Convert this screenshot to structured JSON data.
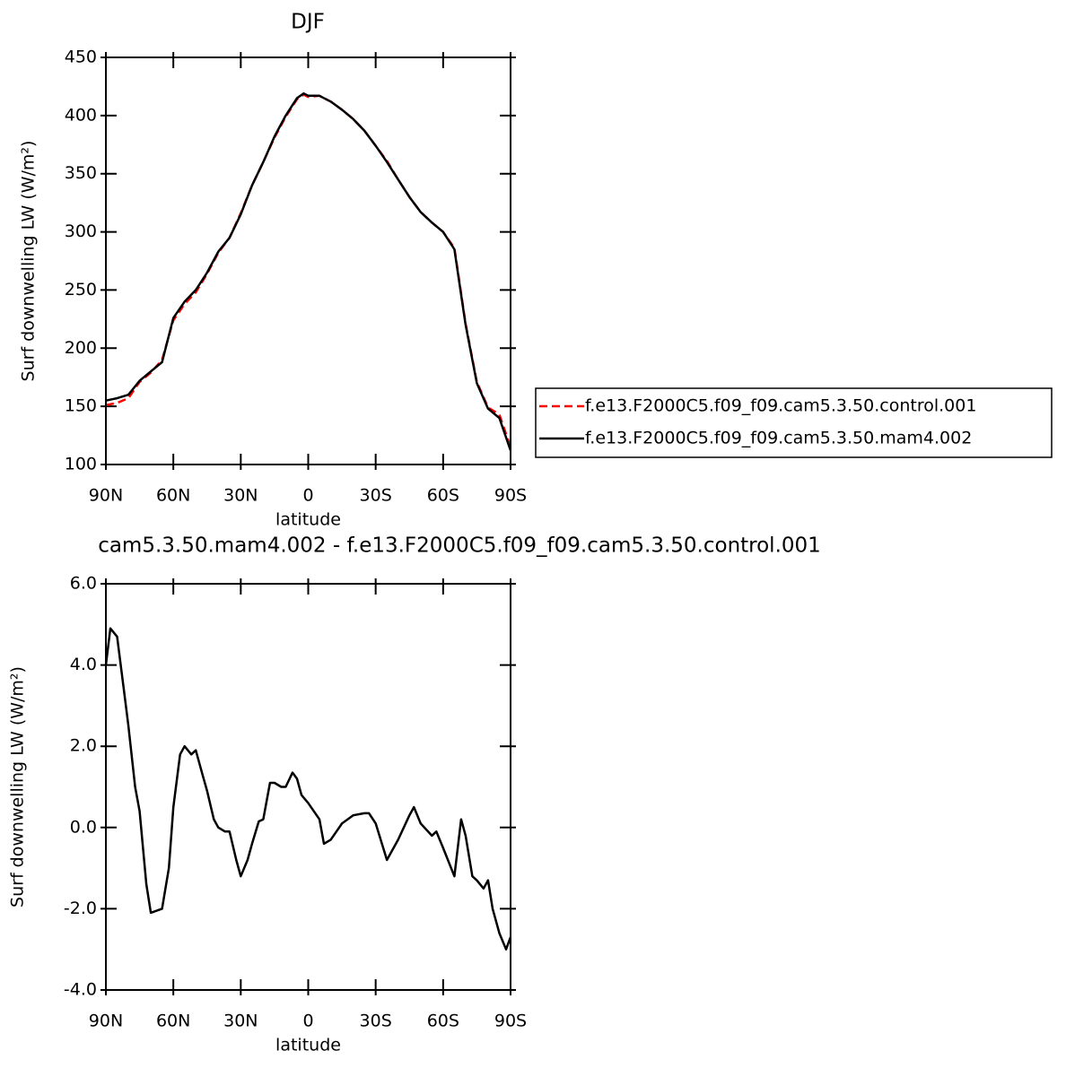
{
  "chart_data": [
    {
      "type": "line",
      "title": "DJF",
      "xlabel": "latitude",
      "ylabel": "Surf downwelling LW (W/m²)",
      "xlim": [
        90,
        -90
      ],
      "ylim": [
        100,
        450
      ],
      "xticks": [
        {
          "value": 90,
          "label": "90N"
        },
        {
          "value": 60,
          "label": "60N"
        },
        {
          "value": 30,
          "label": "30N"
        },
        0,
        {
          "value": -30,
          "label": "30S"
        },
        {
          "value": -60,
          "label": "60S"
        },
        {
          "value": -90,
          "label": "90S"
        }
      ],
      "yticks": [
        100,
        150,
        200,
        250,
        300,
        350,
        400,
        450
      ],
      "legend": "right",
      "series": [
        {
          "name": "f.e13.F2000C5.f09_f09.cam5.3.50.control.001",
          "color": "#ff0000",
          "line_style": "dashed",
          "x": [
            90,
            85,
            80,
            75,
            70,
            65,
            60,
            55,
            50,
            45,
            40,
            35,
            30,
            25,
            20,
            15,
            10,
            5,
            2,
            0,
            -5,
            -10,
            -15,
            -20,
            -25,
            -30,
            -35,
            -40,
            -45,
            -50,
            -55,
            -60,
            -65,
            -70,
            -75,
            -80,
            -85,
            -90
          ],
          "values": [
            151,
            153,
            157,
            171,
            179,
            190,
            224,
            238,
            248,
            264,
            282,
            295,
            316,
            340,
            360,
            381,
            399,
            414,
            418,
            416,
            417,
            412,
            405,
            397,
            387,
            374,
            361,
            345,
            330,
            317,
            308,
            300,
            286,
            221,
            171,
            149,
            143,
            115
          ]
        },
        {
          "name": "f.e13.F2000C5.f09_f09.cam5.3.50.mam4.002",
          "color": "#000000",
          "line_style": "solid",
          "x": [
            90,
            85,
            80,
            75,
            70,
            65,
            60,
            55,
            50,
            45,
            40,
            35,
            30,
            25,
            20,
            15,
            10,
            5,
            2,
            0,
            -5,
            -10,
            -15,
            -20,
            -25,
            -30,
            -35,
            -40,
            -45,
            -50,
            -55,
            -60,
            -65,
            -70,
            -75,
            -80,
            -85,
            -90
          ],
          "values": [
            155,
            157,
            160,
            172,
            180,
            188,
            226,
            240,
            250,
            265,
            283,
            295,
            315,
            340,
            360,
            382,
            400,
            415,
            419,
            417,
            417,
            412,
            405,
            397,
            387,
            374,
            360,
            345,
            330,
            317,
            308,
            300,
            285,
            220,
            170,
            148,
            140,
            112
          ]
        }
      ]
    },
    {
      "type": "line",
      "title": "cam5.3.50.mam4.002 - f.e13.F2000C5.f09_f09.cam5.3.50.control.001",
      "xlabel": "latitude",
      "ylabel": "Surf downwelling LW (W/m²)",
      "xlim": [
        90,
        -90
      ],
      "ylim": [
        -4,
        6
      ],
      "xticks": [
        {
          "value": 90,
          "label": "90N"
        },
        {
          "value": 60,
          "label": "60N"
        },
        {
          "value": 30,
          "label": "30N"
        },
        0,
        {
          "value": -30,
          "label": "30S"
        },
        {
          "value": -60,
          "label": "60S"
        },
        {
          "value": -90,
          "label": "90S"
        }
      ],
      "yticks": [
        {
          "value": -4,
          "label": "-4.0"
        },
        {
          "value": -2,
          "label": "-2.0"
        },
        {
          "value": 0,
          "label": "0.0"
        },
        {
          "value": 2,
          "label": "2.0"
        },
        {
          "value": 4,
          "label": "4.0"
        },
        {
          "value": 6,
          "label": "6.0"
        }
      ],
      "series": [
        {
          "color": "#000000",
          "line_style": "solid",
          "x": [
            90,
            88,
            85,
            82,
            80,
            77,
            75,
            72,
            70,
            65,
            62,
            60,
            57,
            55,
            52,
            50,
            47,
            45,
            42,
            40,
            37,
            35,
            32,
            30,
            27,
            25,
            22,
            20,
            17,
            15,
            12,
            10,
            7,
            5,
            3,
            0,
            -5,
            -7,
            -10,
            -15,
            -20,
            -25,
            -27,
            -30,
            -35,
            -40,
            -45,
            -47,
            -50,
            -55,
            -57,
            -60,
            -65,
            -68,
            -70,
            -73,
            -75,
            -78,
            -80,
            -82,
            -85,
            -88,
            -90
          ],
          "values": [
            4.0,
            4.9,
            4.7,
            3.4,
            2.5,
            1.0,
            0.4,
            -1.4,
            -2.1,
            -2.0,
            -1.0,
            0.5,
            1.8,
            2.0,
            1.8,
            1.9,
            1.3,
            0.9,
            0.2,
            0.0,
            -0.1,
            -0.1,
            -0.8,
            -1.2,
            -0.8,
            -0.4,
            0.15,
            0.2,
            1.1,
            1.1,
            1.0,
            1.0,
            1.35,
            1.2,
            0.8,
            0.6,
            0.2,
            -0.4,
            -0.3,
            0.1,
            0.3,
            0.35,
            0.35,
            0.1,
            -0.8,
            -0.3,
            0.3,
            0.5,
            0.1,
            -0.2,
            -0.1,
            -0.5,
            -1.2,
            0.2,
            -0.2,
            -1.2,
            -1.3,
            -1.5,
            -1.3,
            -2.0,
            -2.6,
            -3.0,
            -2.7
          ]
        }
      ]
    }
  ]
}
